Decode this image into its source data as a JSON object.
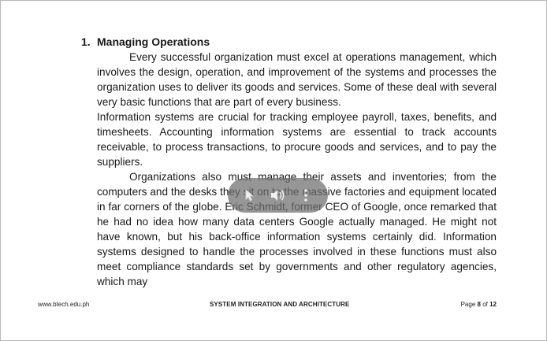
{
  "section": {
    "number": "1.",
    "title": "Managing Operations"
  },
  "paragraphs": [
    "Every successful organization must excel at operations management, which involves the design, operation, and improvement of the systems and processes the organization uses to deliver its goods and services. Some of these deal with several very basic functions that are part of every business.",
    "Information systems are crucial for tracking employee payroll, taxes, benefits, and timesheets. Accounting information systems are essential to track accounts receivable, to process transactions, to procure goods and services, and to pay the suppliers.",
    "Organizations also must manage their assets and inventories; from the computers and the desks they sit on to the massive factories and equipment located in far corners of the globe. Eric Schmidt, former CEO of Google, once remarked that he had no idea how many data centers Google actually managed. He might not have known, but his back-office information systems certainly did. Information systems designed to handle the processes involved in these functions must also meet compliance standards set by governments and other regulatory agencies, which may"
  ],
  "footer": {
    "website": "www.btech.edu.ph",
    "course": "SYSTEM INTEGRATION AND ARCHITECTURE",
    "page_prefix": "Page",
    "page_current": "8",
    "page_of": "of",
    "page_total": "12"
  },
  "overlay": {
    "icons": [
      "cursor-icon",
      "volume-icon",
      "more-options-icon"
    ]
  }
}
